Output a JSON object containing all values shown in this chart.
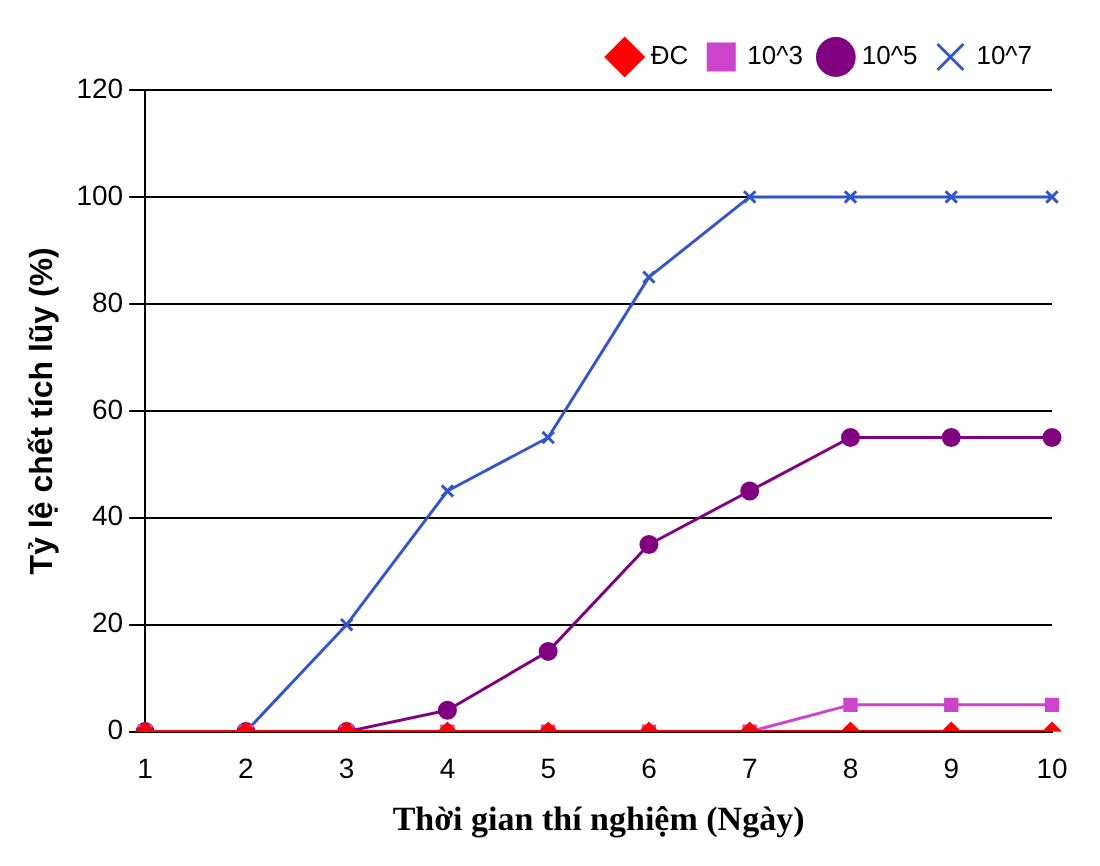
{
  "chart_data": {
    "type": "line",
    "xlabel": "Thời gian thí nghiệm (Ngày)",
    "ylabel": "Tỷ lệ chết tích lũy (%)",
    "categories": [
      "1",
      "2",
      "3",
      "4",
      "5",
      "6",
      "7",
      "8",
      "9",
      "10"
    ],
    "series": [
      {
        "name": "ĐC",
        "color": "#ff0000",
        "marker": "diamond",
        "values": [
          0,
          0,
          0,
          0,
          0,
          0,
          0,
          0,
          0,
          0
        ]
      },
      {
        "name": "10^3",
        "color": "#cc44cc",
        "marker": "square",
        "values": [
          0,
          0,
          0,
          0,
          0,
          0,
          0,
          5,
          5,
          5
        ]
      },
      {
        "name": "10^5",
        "color": "#800080",
        "marker": "circle",
        "values": [
          0,
          0,
          0,
          4,
          15,
          35,
          45,
          55,
          55,
          55
        ]
      },
      {
        "name": "10^7",
        "color": "#3355cc",
        "marker": "cross",
        "values": [
          0,
          0,
          20,
          45,
          55,
          85,
          100,
          100,
          100,
          100
        ]
      }
    ],
    "ylim": [
      0,
      120
    ],
    "yticks": [
      0,
      20,
      40,
      60,
      80,
      100,
      120
    ],
    "grid": "y",
    "legend": "top right",
    "line_style": "solid"
  }
}
